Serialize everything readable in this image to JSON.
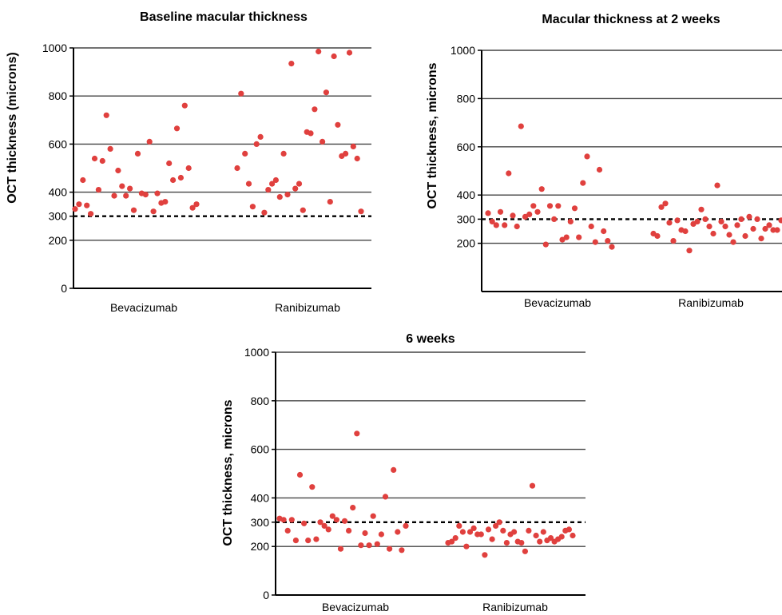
{
  "chart_data": [
    {
      "type": "scatter",
      "title": "Baseline macular thickness",
      "ylabel": "OCT thickness (microns)",
      "categories": [
        "Bevacizumab",
        "Ranibizumab"
      ],
      "yticks": [
        0,
        200,
        300,
        400,
        600,
        800,
        1000
      ],
      "ylim": [
        0,
        1000
      ],
      "grid": true,
      "reference_line": 300,
      "series": [
        {
          "values": [
            330,
            350,
            450,
            345,
            310,
            540,
            410,
            530,
            720,
            580,
            385,
            490,
            425,
            385,
            415,
            325,
            560,
            395,
            390,
            610,
            320,
            395,
            355,
            360,
            520,
            450,
            665,
            460,
            760,
            500,
            335,
            350
          ]
        },
        {
          "values": [
            500,
            810,
            560,
            435,
            340,
            600,
            630,
            315,
            410,
            435,
            450,
            380,
            560,
            390,
            935,
            415,
            435,
            325,
            650,
            645,
            745,
            985,
            610,
            815,
            360,
            965,
            680,
            550,
            560,
            980,
            590,
            540,
            320
          ]
        }
      ]
    },
    {
      "type": "scatter",
      "title": "Macular thickness at 2 weeks",
      "ylabel": "OCT thickness, microns",
      "categories": [
        "Bevacizumab",
        "Ranibizumab"
      ],
      "yticks": [
        200,
        300,
        400,
        600,
        800,
        1000
      ],
      "ylim": [
        0,
        1000
      ],
      "grid": true,
      "reference_line": 300,
      "series": [
        {
          "values": [
            325,
            290,
            275,
            330,
            275,
            490,
            315,
            270,
            685,
            310,
            320,
            355,
            330,
            425,
            195,
            355,
            300,
            355,
            215,
            225,
            290,
            345,
            225,
            450,
            560,
            270,
            205,
            505,
            250,
            210,
            185
          ]
        },
        {
          "values": [
            240,
            230,
            350,
            365,
            285,
            210,
            295,
            255,
            250,
            170,
            280,
            290,
            340,
            300,
            270,
            240,
            440,
            290,
            270,
            235,
            205,
            275,
            300,
            230,
            310,
            260,
            300,
            220,
            260,
            275,
            255,
            255,
            295
          ]
        }
      ]
    },
    {
      "type": "scatter",
      "title": "6 weeks",
      "ylabel": "OCT thickness, microns",
      "categories": [
        "Bevacizumab",
        "Ranibizumab"
      ],
      "yticks": [
        0,
        200,
        300,
        400,
        600,
        800,
        1000
      ],
      "ylim": [
        0,
        1000
      ],
      "grid": true,
      "reference_line": 300,
      "series": [
        {
          "values": [
            315,
            310,
            265,
            310,
            225,
            495,
            295,
            225,
            445,
            230,
            300,
            285,
            270,
            325,
            310,
            190,
            305,
            265,
            360,
            665,
            205,
            255,
            205,
            325,
            210,
            250,
            405,
            190,
            515,
            260,
            185,
            285
          ]
        },
        {
          "values": [
            215,
            220,
            235,
            285,
            260,
            200,
            260,
            275,
            250,
            250,
            165,
            270,
            230,
            285,
            300,
            265,
            215,
            250,
            260,
            220,
            215,
            180,
            265,
            450,
            245,
            220,
            260,
            225,
            235,
            220,
            230,
            240,
            265,
            270,
            245
          ]
        }
      ]
    }
  ]
}
